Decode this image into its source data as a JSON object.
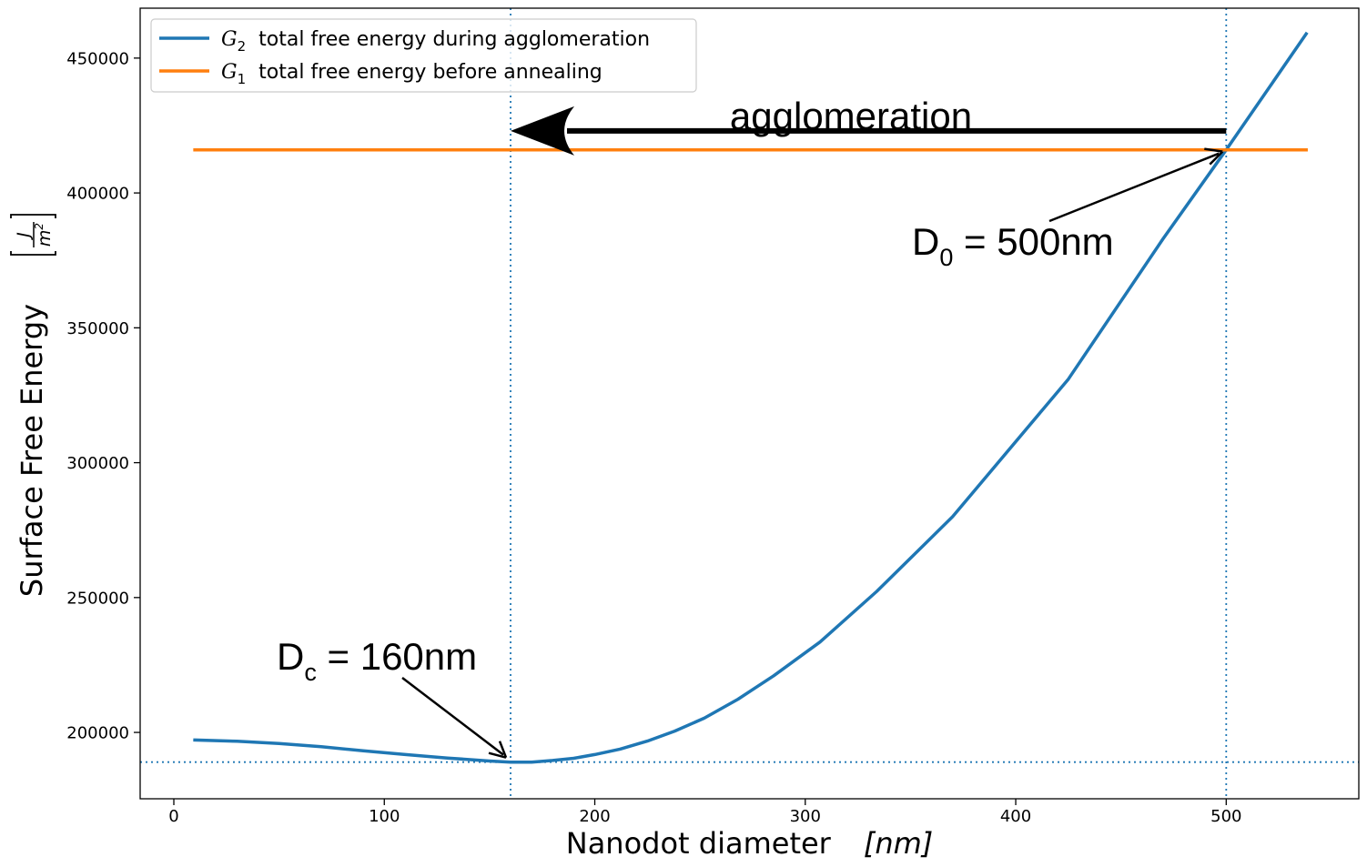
{
  "chart_data": {
    "type": "line",
    "xlabel": "Nanodot diameter",
    "xlabel_unit": "nm",
    "ylabel": "Surface Free Energy",
    "ylabel_unit_num": "J",
    "ylabel_unit_den": "m",
    "ylabel_unit_den_exp": "2",
    "xlim": [
      -16,
      563
    ],
    "ylim": [
      175400,
      468500
    ],
    "xticks": [
      0,
      100,
      200,
      300,
      400,
      500
    ],
    "yticks": [
      200000,
      250000,
      300000,
      350000,
      400000,
      450000
    ],
    "grid": false,
    "legend_position": "top-left",
    "series": [
      {
        "name": "total free energy during agglomeration",
        "symbol": "G",
        "subscript": "2",
        "color": "#1f77b4",
        "x": [
          10,
          30,
          50,
          70,
          90,
          110,
          130,
          150,
          160,
          170,
          180,
          190,
          200,
          212,
          225,
          238,
          252,
          268,
          285,
          307,
          334,
          370,
          425,
          470,
          500,
          538
        ],
        "y": [
          197200,
          196700,
          195900,
          194700,
          193200,
          191800,
          190500,
          189400,
          189000,
          189000,
          189600,
          190400,
          191800,
          193800,
          196800,
          200500,
          205300,
          212300,
          221000,
          233500,
          252300,
          280000,
          331000,
          383000,
          416000,
          459000
        ]
      },
      {
        "name": "total free energy before annealing",
        "symbol": "G",
        "subscript": "1",
        "color": "#ff7f0e",
        "x": [
          10,
          538
        ],
        "y": [
          416000,
          416000
        ]
      }
    ],
    "reference_lines": {
      "vertical_x": [
        160,
        500
      ],
      "horizontal_y": [
        189000
      ],
      "color": "#1f77b4"
    },
    "annotations": [
      {
        "main": "D",
        "sub": "c",
        "rest": " = 160nm",
        "target_x": 160,
        "target_y": 189000
      },
      {
        "main": "D",
        "sub": "0",
        "rest": " = 500nm",
        "target_x": 500,
        "target_y": 416000
      }
    ],
    "arrow_annotation": {
      "text": "agglomeration",
      "from_x": 500,
      "to_x": 160,
      "y": 423000
    }
  }
}
